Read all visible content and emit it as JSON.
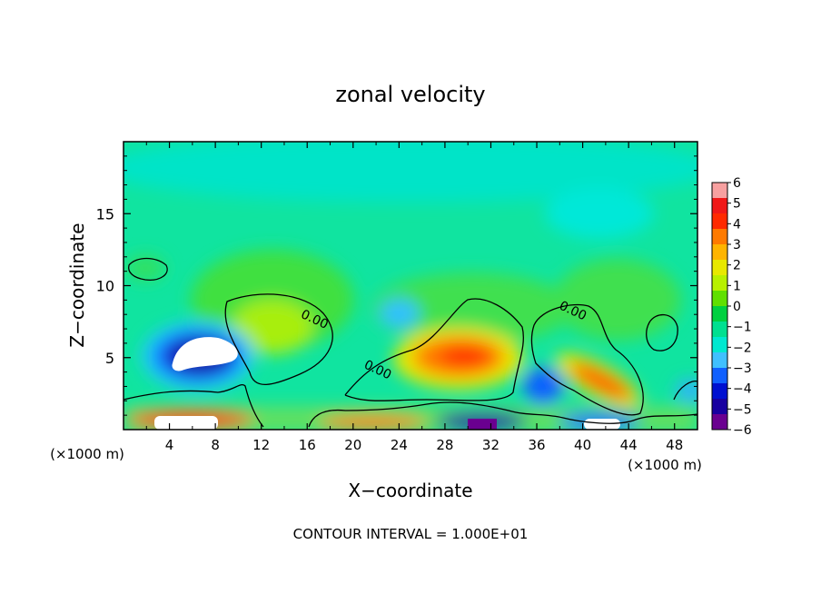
{
  "chart_data": {
    "type": "heatmap",
    "title": "zonal velocity",
    "xlabel": "X−coordinate",
    "ylabel": "Z−coordinate",
    "x_unit_left": "(×1000 m)",
    "x_unit_right": "(×1000 m)",
    "footer": "CONTOUR INTERVAL = 1.000E+01",
    "xlim": [
      0,
      50
    ],
    "ylim": [
      0,
      20
    ],
    "x_ticks": [
      4,
      8,
      12,
      16,
      20,
      24,
      28,
      32,
      36,
      40,
      44,
      48
    ],
    "x_tick_labels": [
      "4",
      "8",
      "12",
      "16",
      "20",
      "24",
      "28",
      "32",
      "36",
      "40",
      "44",
      "48"
    ],
    "y_ticks": [
      5,
      10,
      15
    ],
    "y_tick_labels": [
      "5",
      "10",
      "15"
    ],
    "colorbar": {
      "range": [
        -6,
        6
      ],
      "tick_labels": [
        "6",
        "5",
        "4",
        "3",
        "2",
        "1",
        "0",
        "−1",
        "−2",
        "−3",
        "−4",
        "−5",
        "−6"
      ],
      "colors": [
        "#f7a0a0",
        "#f01818",
        "#ff2a00",
        "#ff7a00",
        "#ffb400",
        "#e8e800",
        "#b8f000",
        "#60e000",
        "#00d040",
        "#00e090",
        "#00e8d0",
        "#40c0ff",
        "#1060ff",
        "#0010d0",
        "#1800a0",
        "#6a0090"
      ]
    },
    "contour_labels": [
      {
        "text": "0.00",
        "x": 16.5,
        "z": 7.4
      },
      {
        "text": "0.00",
        "x": 22.0,
        "z": 3.9
      },
      {
        "text": "0.00",
        "x": 39.0,
        "z": 8.0
      }
    ],
    "features": [
      {
        "x": 6.5,
        "z": 5.3,
        "value": -7.0
      },
      {
        "x": 14.0,
        "z": 7.0,
        "value": 2.0
      },
      {
        "x": 29.5,
        "z": 5.0,
        "value": 3.5
      },
      {
        "x": 43.0,
        "z": 2.7,
        "value": 4.0
      },
      {
        "x": 37.0,
        "z": 2.7,
        "value": -4.0
      },
      {
        "x": 24.0,
        "z": 8.0,
        "value": -2.5
      },
      {
        "x": 7.0,
        "z": 0.6,
        "value": 7.0
      },
      {
        "x": 30.0,
        "z": 0.4,
        "value": -6.5
      }
    ]
  }
}
